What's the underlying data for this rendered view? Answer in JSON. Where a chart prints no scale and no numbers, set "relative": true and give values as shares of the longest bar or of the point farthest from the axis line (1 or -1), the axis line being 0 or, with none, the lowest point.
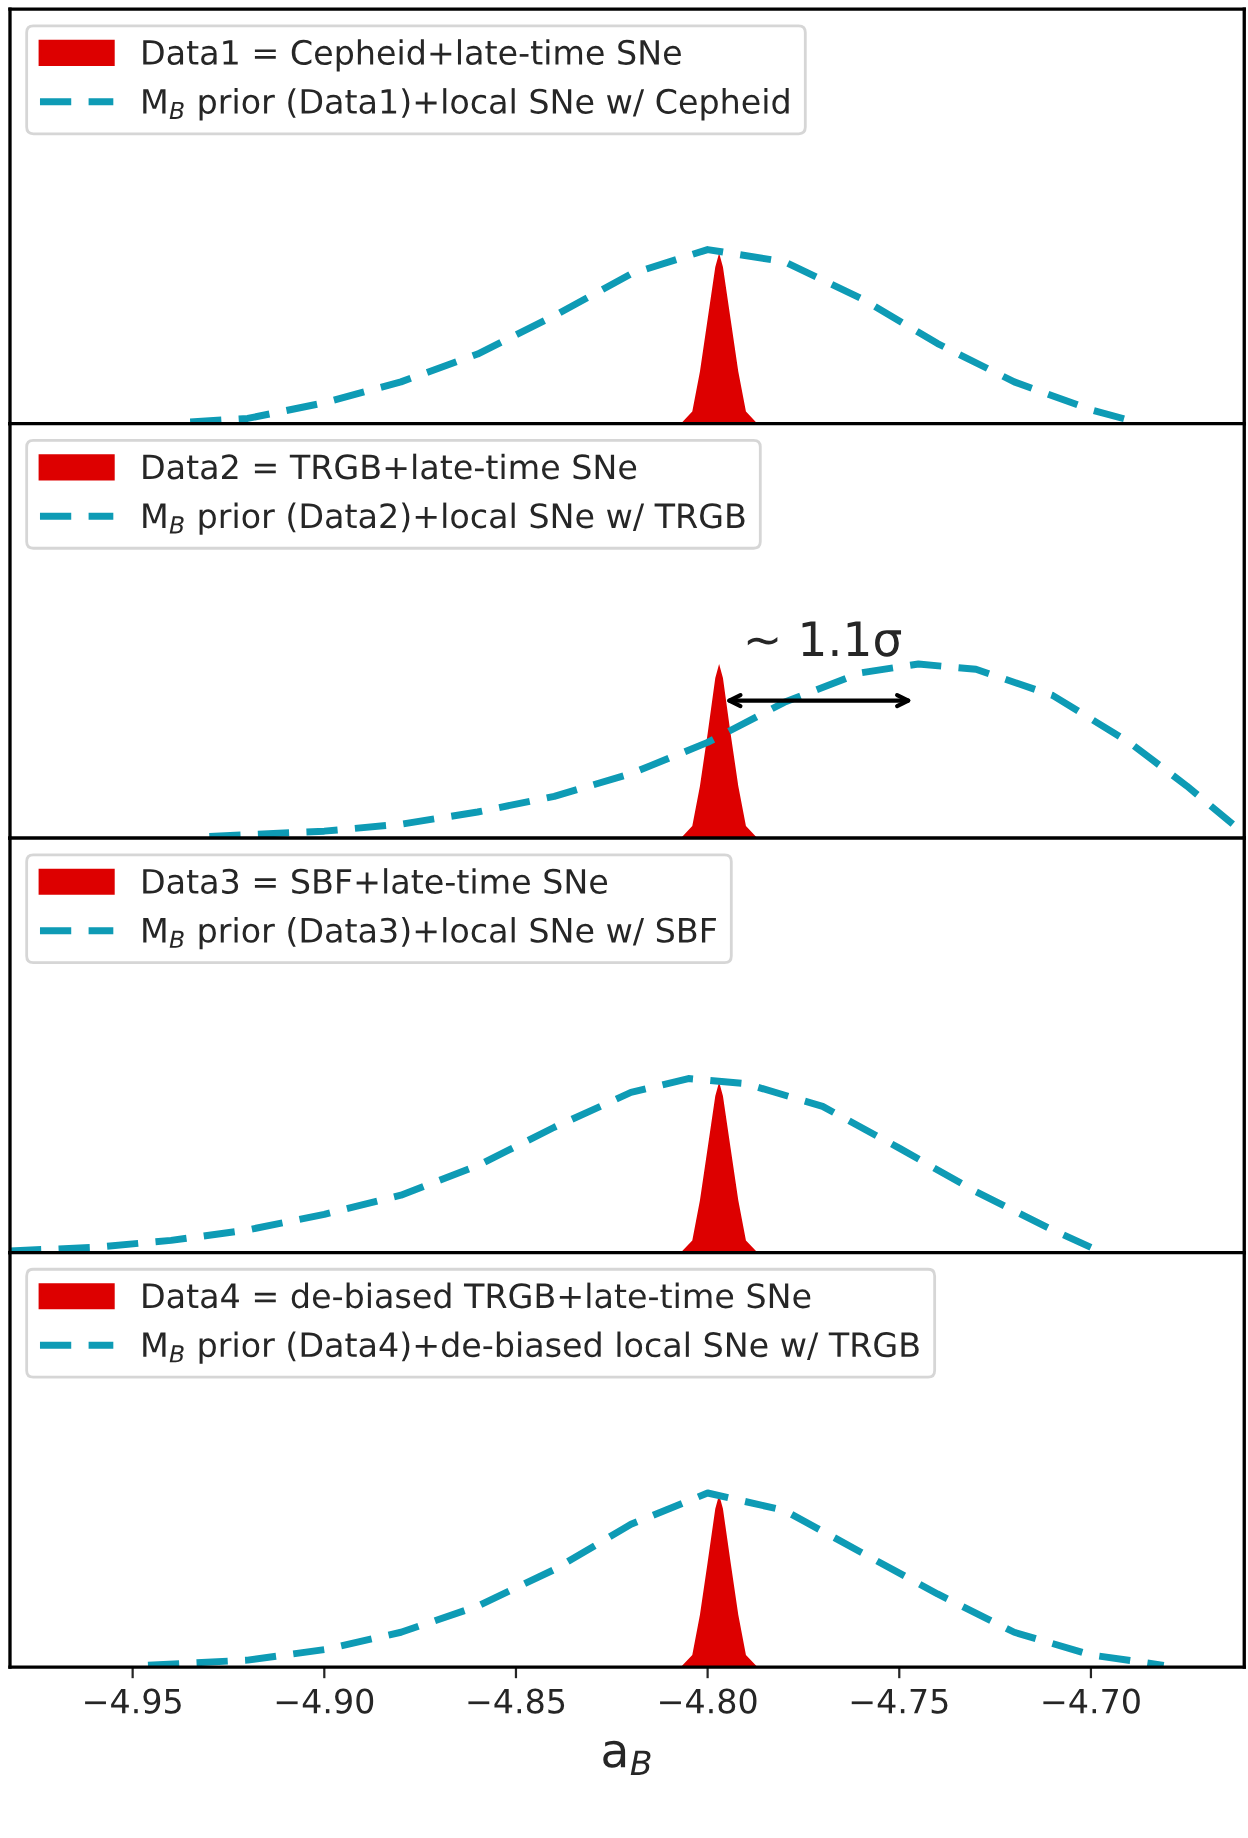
{
  "chart_data": [
    {
      "type": "line",
      "relative": true,
      "xlim": [
        -4.982,
        -4.66
      ],
      "tick_labels": false,
      "legend": "top left",
      "series": [
        {
          "name": "Data1 = Cepheid+late-time SNe",
          "type": "area",
          "color": "#dd0000",
          "x": [
            -4.807,
            -4.804,
            -4.802,
            -4.8,
            -4.798,
            -4.797,
            -4.796,
            -4.794,
            -4.792,
            -4.79,
            -4.787
          ],
          "values": [
            0,
            0.07,
            0.3,
            0.6,
            0.9,
            0.98,
            0.9,
            0.6,
            0.3,
            0.07,
            0
          ]
        },
        {
          "name": "M$_{B}$ prior (Data1)+local SNe w/ Cepheid",
          "line_style": "dashed",
          "color": "#0e9bb5",
          "x": [
            -4.935,
            -4.92,
            -4.9,
            -4.88,
            -4.86,
            -4.84,
            -4.82,
            -4.8,
            -4.78,
            -4.76,
            -4.74,
            -4.72,
            -4.7,
            -4.69
          ],
          "values": [
            0.01,
            0.03,
            0.12,
            0.24,
            0.4,
            0.62,
            0.86,
            1.0,
            0.93,
            0.72,
            0.46,
            0.24,
            0.08,
            0.02
          ]
        }
      ]
    },
    {
      "type": "line",
      "relative": true,
      "xlim": [
        -4.982,
        -4.66
      ],
      "tick_labels": false,
      "legend": "top left",
      "annotations": [
        {
          "text": "∼ 1.1σ",
          "x": -4.77,
          "y": 0.79
        }
      ],
      "series": [
        {
          "name": "Data2 = TRGB+late-time SNe",
          "type": "area",
          "color": "#dd0000",
          "x": [
            -4.807,
            -4.804,
            -4.802,
            -4.8,
            -4.798,
            -4.797,
            -4.796,
            -4.794,
            -4.792,
            -4.79,
            -4.787
          ],
          "values": [
            0,
            0.07,
            0.3,
            0.6,
            0.92,
            1.0,
            0.92,
            0.6,
            0.3,
            0.07,
            0
          ]
        },
        {
          "name": "M$_{B}$ prior (Data2)+local SNe w/ TRGB",
          "line_style": "dashed",
          "color": "#0e9bb5",
          "x": [
            -4.93,
            -4.9,
            -4.88,
            -4.86,
            -4.84,
            -4.82,
            -4.8,
            -4.78,
            -4.76,
            -4.745,
            -4.73,
            -4.71,
            -4.69,
            -4.675,
            -4.663
          ],
          "values": [
            0.01,
            0.04,
            0.08,
            0.15,
            0.24,
            0.37,
            0.55,
            0.78,
            0.95,
            1.0,
            0.97,
            0.82,
            0.55,
            0.3,
            0.08
          ]
        }
      ]
    },
    {
      "type": "line",
      "relative": true,
      "xlim": [
        -4.982,
        -4.66
      ],
      "tick_labels": false,
      "legend": "top left",
      "series": [
        {
          "name": "Data3 = SBF+late-time SNe",
          "type": "area",
          "color": "#dd0000",
          "x": [
            -4.807,
            -4.804,
            -4.802,
            -4.8,
            -4.798,
            -4.797,
            -4.796,
            -4.794,
            -4.792,
            -4.79,
            -4.787
          ],
          "values": [
            0,
            0.07,
            0.3,
            0.6,
            0.9,
            0.98,
            0.9,
            0.6,
            0.3,
            0.07,
            0
          ]
        },
        {
          "name": "M$_{B}$ prior (Data3)+local SNe w/ SBF",
          "line_style": "dashed",
          "color": "#0e9bb5",
          "x": [
            -4.982,
            -4.96,
            -4.94,
            -4.92,
            -4.9,
            -4.88,
            -4.86,
            -4.84,
            -4.82,
            -4.805,
            -4.79,
            -4.77,
            -4.75,
            -4.73,
            -4.71,
            -4.7
          ],
          "values": [
            0.01,
            0.03,
            0.07,
            0.13,
            0.22,
            0.33,
            0.5,
            0.72,
            0.92,
            1.0,
            0.97,
            0.84,
            0.6,
            0.35,
            0.13,
            0.03
          ]
        }
      ]
    },
    {
      "type": "line",
      "relative": true,
      "xlim": [
        -4.982,
        -4.66
      ],
      "xticks": [
        {
          "value": -4.95,
          "label": "−4.95"
        },
        {
          "value": -4.9,
          "label": "−4.90"
        },
        {
          "value": -4.85,
          "label": "−4.85"
        },
        {
          "value": -4.8,
          "label": "−4.80"
        },
        {
          "value": -4.75,
          "label": "−4.75"
        },
        {
          "value": -4.7,
          "label": "−4.70"
        }
      ],
      "tick_labels": "x",
      "xlabel": "a$_{B}$",
      "legend": "top left",
      "series": [
        {
          "name": "Data4 = de-biased TRGB+late-time SNe",
          "type": "area",
          "color": "#dd0000",
          "x": [
            -4.807,
            -4.804,
            -4.802,
            -4.8,
            -4.798,
            -4.797,
            -4.796,
            -4.794,
            -4.792,
            -4.79,
            -4.787
          ],
          "values": [
            0,
            0.07,
            0.3,
            0.6,
            0.91,
            0.99,
            0.91,
            0.6,
            0.3,
            0.07,
            0
          ]
        },
        {
          "name": "M$_{B}$ prior (Data4)+de-biased local SNe w/ TRGB",
          "line_style": "dashed",
          "color": "#0e9bb5",
          "x": [
            -4.946,
            -4.92,
            -4.9,
            -4.88,
            -4.86,
            -4.84,
            -4.82,
            -4.8,
            -4.78,
            -4.76,
            -4.74,
            -4.72,
            -4.7,
            -4.681
          ],
          "values": [
            0.01,
            0.04,
            0.1,
            0.2,
            0.35,
            0.56,
            0.82,
            1.0,
            0.9,
            0.66,
            0.42,
            0.2,
            0.07,
            0.01
          ]
        }
      ]
    }
  ]
}
